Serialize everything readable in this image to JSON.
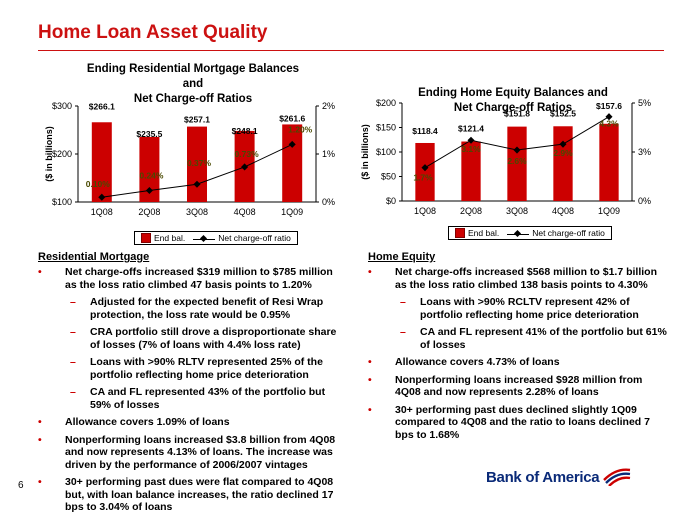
{
  "page": {
    "title": "Home Loan Asset Quality",
    "page_number": "6",
    "logo_text": "Bank of America",
    "logo_icon": "bank-of-america-flagscape-icon"
  },
  "colors": {
    "accent": "#cc1111",
    "bar": "#cc0000",
    "brand_blue": "#0a2a78"
  },
  "chart_data": [
    {
      "type": "bar",
      "title_line1": "Ending Residential Mortgage Balances and",
      "title_line2": "Net Charge-off Ratios",
      "ylabel": "($ in billions)",
      "categories": [
        "1Q08",
        "2Q08",
        "3Q08",
        "4Q08",
        "1Q09"
      ],
      "series": [
        {
          "name": "End bal.",
          "values": [
            266.1,
            235.5,
            257.1,
            248.1,
            261.6
          ],
          "labels": [
            "$266.1",
            "$235.5",
            "$257.1",
            "$248.1",
            "$261.6"
          ]
        },
        {
          "name": "Net charge-off ratio",
          "type": "line",
          "axis": "right",
          "values": [
            0.1,
            0.24,
            0.37,
            0.73,
            1.2
          ],
          "labels": [
            "0.10%",
            "0.24%",
            "0.37%",
            "0.73%",
            "1.20%"
          ]
        }
      ],
      "ylim": [
        100,
        300
      ],
      "yticks": [
        "$100",
        "$200",
        "$300"
      ],
      "y2lim": [
        0,
        2
      ],
      "y2ticks": [
        "0%",
        "1%",
        "2%"
      ],
      "legend": "bottom"
    },
    {
      "type": "bar",
      "title_line1": "Ending Home Equity Balances and",
      "title_line2": "Net Charge-off  Ratios",
      "ylabel": "($ in billions)",
      "categories": [
        "1Q08",
        "2Q08",
        "3Q08",
        "4Q08",
        "1Q09"
      ],
      "series": [
        {
          "name": "End bal.",
          "values": [
            118.4,
            121.4,
            151.8,
            152.5,
            157.6
          ],
          "labels": [
            "$118.4",
            "$121.4",
            "$151.8",
            "$152.5",
            "$157.6"
          ]
        },
        {
          "name": "Net charge-off ratio",
          "type": "line",
          "axis": "right",
          "values": [
            1.7,
            3.1,
            2.6,
            2.9,
            4.3
          ],
          "labels": [
            "1.7%",
            "3.1%",
            "2.6%",
            "2.9%",
            "4.3%"
          ]
        }
      ],
      "ylim": [
        0,
        200
      ],
      "yticks": [
        "$0",
        "$50",
        "$100",
        "$150",
        "$200"
      ],
      "y2lim": [
        0,
        5
      ],
      "y2ticks": [
        "0%",
        "3%",
        "5%"
      ],
      "legend": "bottom"
    }
  ],
  "residential": {
    "heading": "Residential Mortgage",
    "bullets": [
      {
        "level": 1,
        "text": "Net charge-offs increased $319 million to $785 million as the loss ratio climbed 47 basis points to 1.20%"
      },
      {
        "level": 2,
        "text": "Adjusted for the expected benefit of Resi Wrap protection, the loss rate would be 0.95%"
      },
      {
        "level": 2,
        "text": "CRA portfolio still drove a disproportionate share of losses (7% of loans with 4.4% loss rate)"
      },
      {
        "level": 2,
        "text": "Loans with >90% RLTV represented 25% of the portfolio reflecting home price deterioration"
      },
      {
        "level": 2,
        "text": "CA and FL represented 43% of the portfolio but 59% of losses"
      },
      {
        "level": 1,
        "text": "Allowance covers 1.09% of loans"
      },
      {
        "level": 1,
        "text": "Nonperforming loans increased $3.8 billion from 4Q08 and now represents 4.13% of loans.  The increase was driven by the performance of 2006/2007 vintages"
      },
      {
        "level": 1,
        "text": "30+ performing past dues were flat compared to 4Q08 but, with loan balance increases, the ratio declined 17 bps to 3.04% of loans"
      }
    ]
  },
  "home_equity": {
    "heading": "Home Equity",
    "bullets": [
      {
        "level": 1,
        "text": "Net charge-offs increased $568 million to $1.7 billion as the loss ratio climbed 138 basis points to 4.30%"
      },
      {
        "level": 2,
        "text": "Loans with >90% RCLTV represent 42% of portfolio reflecting home price deterioration"
      },
      {
        "level": 2,
        "text": "CA and FL represent 41% of the portfolio but 61% of losses"
      },
      {
        "level": 1,
        "text": "Allowance covers 4.73% of loans"
      },
      {
        "level": 1,
        "text": "Nonperforming loans increased $928 million from 4Q08 and now represents 2.28% of loans"
      },
      {
        "level": 1,
        "text": "30+ performing past dues declined slightly 1Q09 compared to 4Q08 and the ratio to loans declined 7 bps to 1.68%"
      }
    ]
  }
}
